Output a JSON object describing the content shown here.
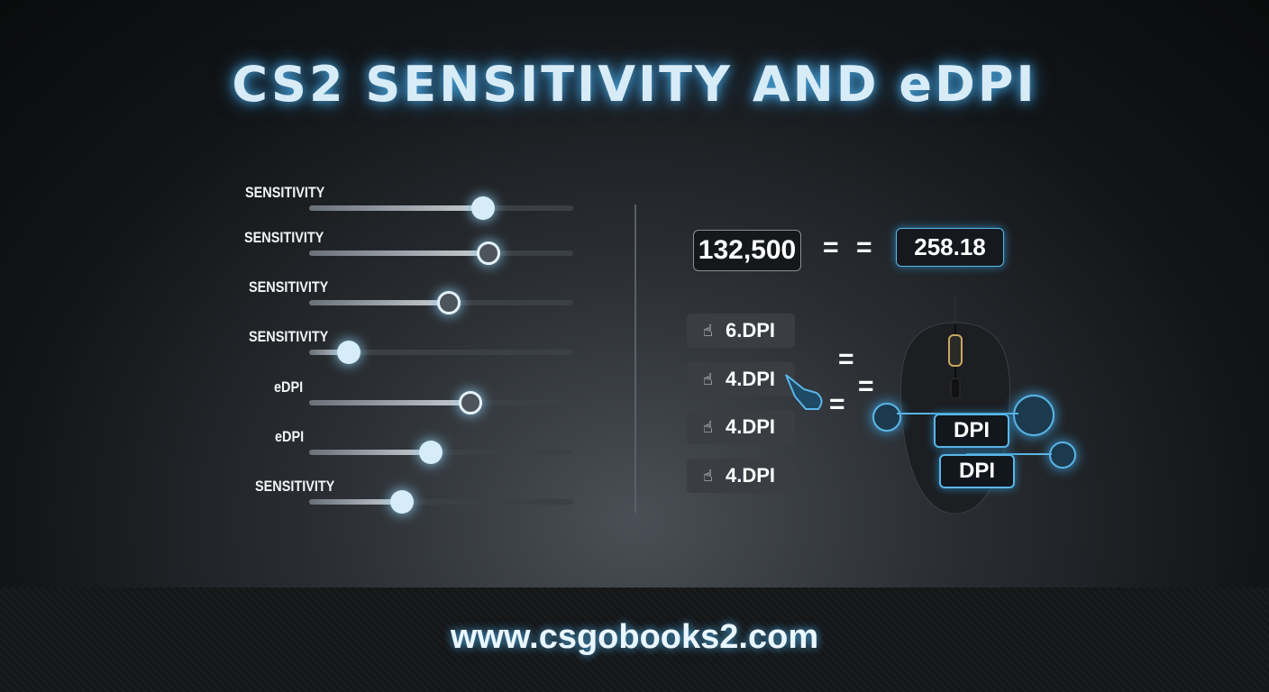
{
  "title": "CS2 SENSITIVITY AND eDPI",
  "sliders": [
    {
      "label": "SENSITIVITY",
      "value_pct": 66,
      "knob": "light"
    },
    {
      "label": "SENSITIVITY",
      "value_pct": 68,
      "knob": "dark"
    },
    {
      "label": "SENSITIVITY",
      "value_pct": 53,
      "knob": "dark"
    },
    {
      "label": "SENSITIVITY",
      "value_pct": 15,
      "knob": "light"
    },
    {
      "label": "eDPI",
      "value_pct": 61,
      "knob": "dark"
    },
    {
      "label": "eDPI",
      "value_pct": 46,
      "knob": "light"
    },
    {
      "label": "SENSITIVITY",
      "value_pct": 35,
      "knob": "light"
    }
  ],
  "calc": {
    "input": "132,500",
    "eq1": "=",
    "eq2": "=",
    "result": "258.18",
    "eq3": "=",
    "eq4": "=",
    "eq5": "="
  },
  "dpi_buttons": [
    {
      "label": "6.DPI",
      "icon": "hand-pointer-icon"
    },
    {
      "label": "4.DPI",
      "icon": "hand-pointer-icon"
    },
    {
      "label": "4.DPI",
      "icon": "hand-pointer-icon"
    },
    {
      "label": "4.DPI",
      "icon": "hand-pointer-icon"
    }
  ],
  "mouse": {
    "tag1": "DPI",
    "tag2": "DPI"
  },
  "footer": {
    "url": "www.csgobooks2.com"
  },
  "colors": {
    "accent": "#5ab6e8",
    "background": "#121416"
  }
}
